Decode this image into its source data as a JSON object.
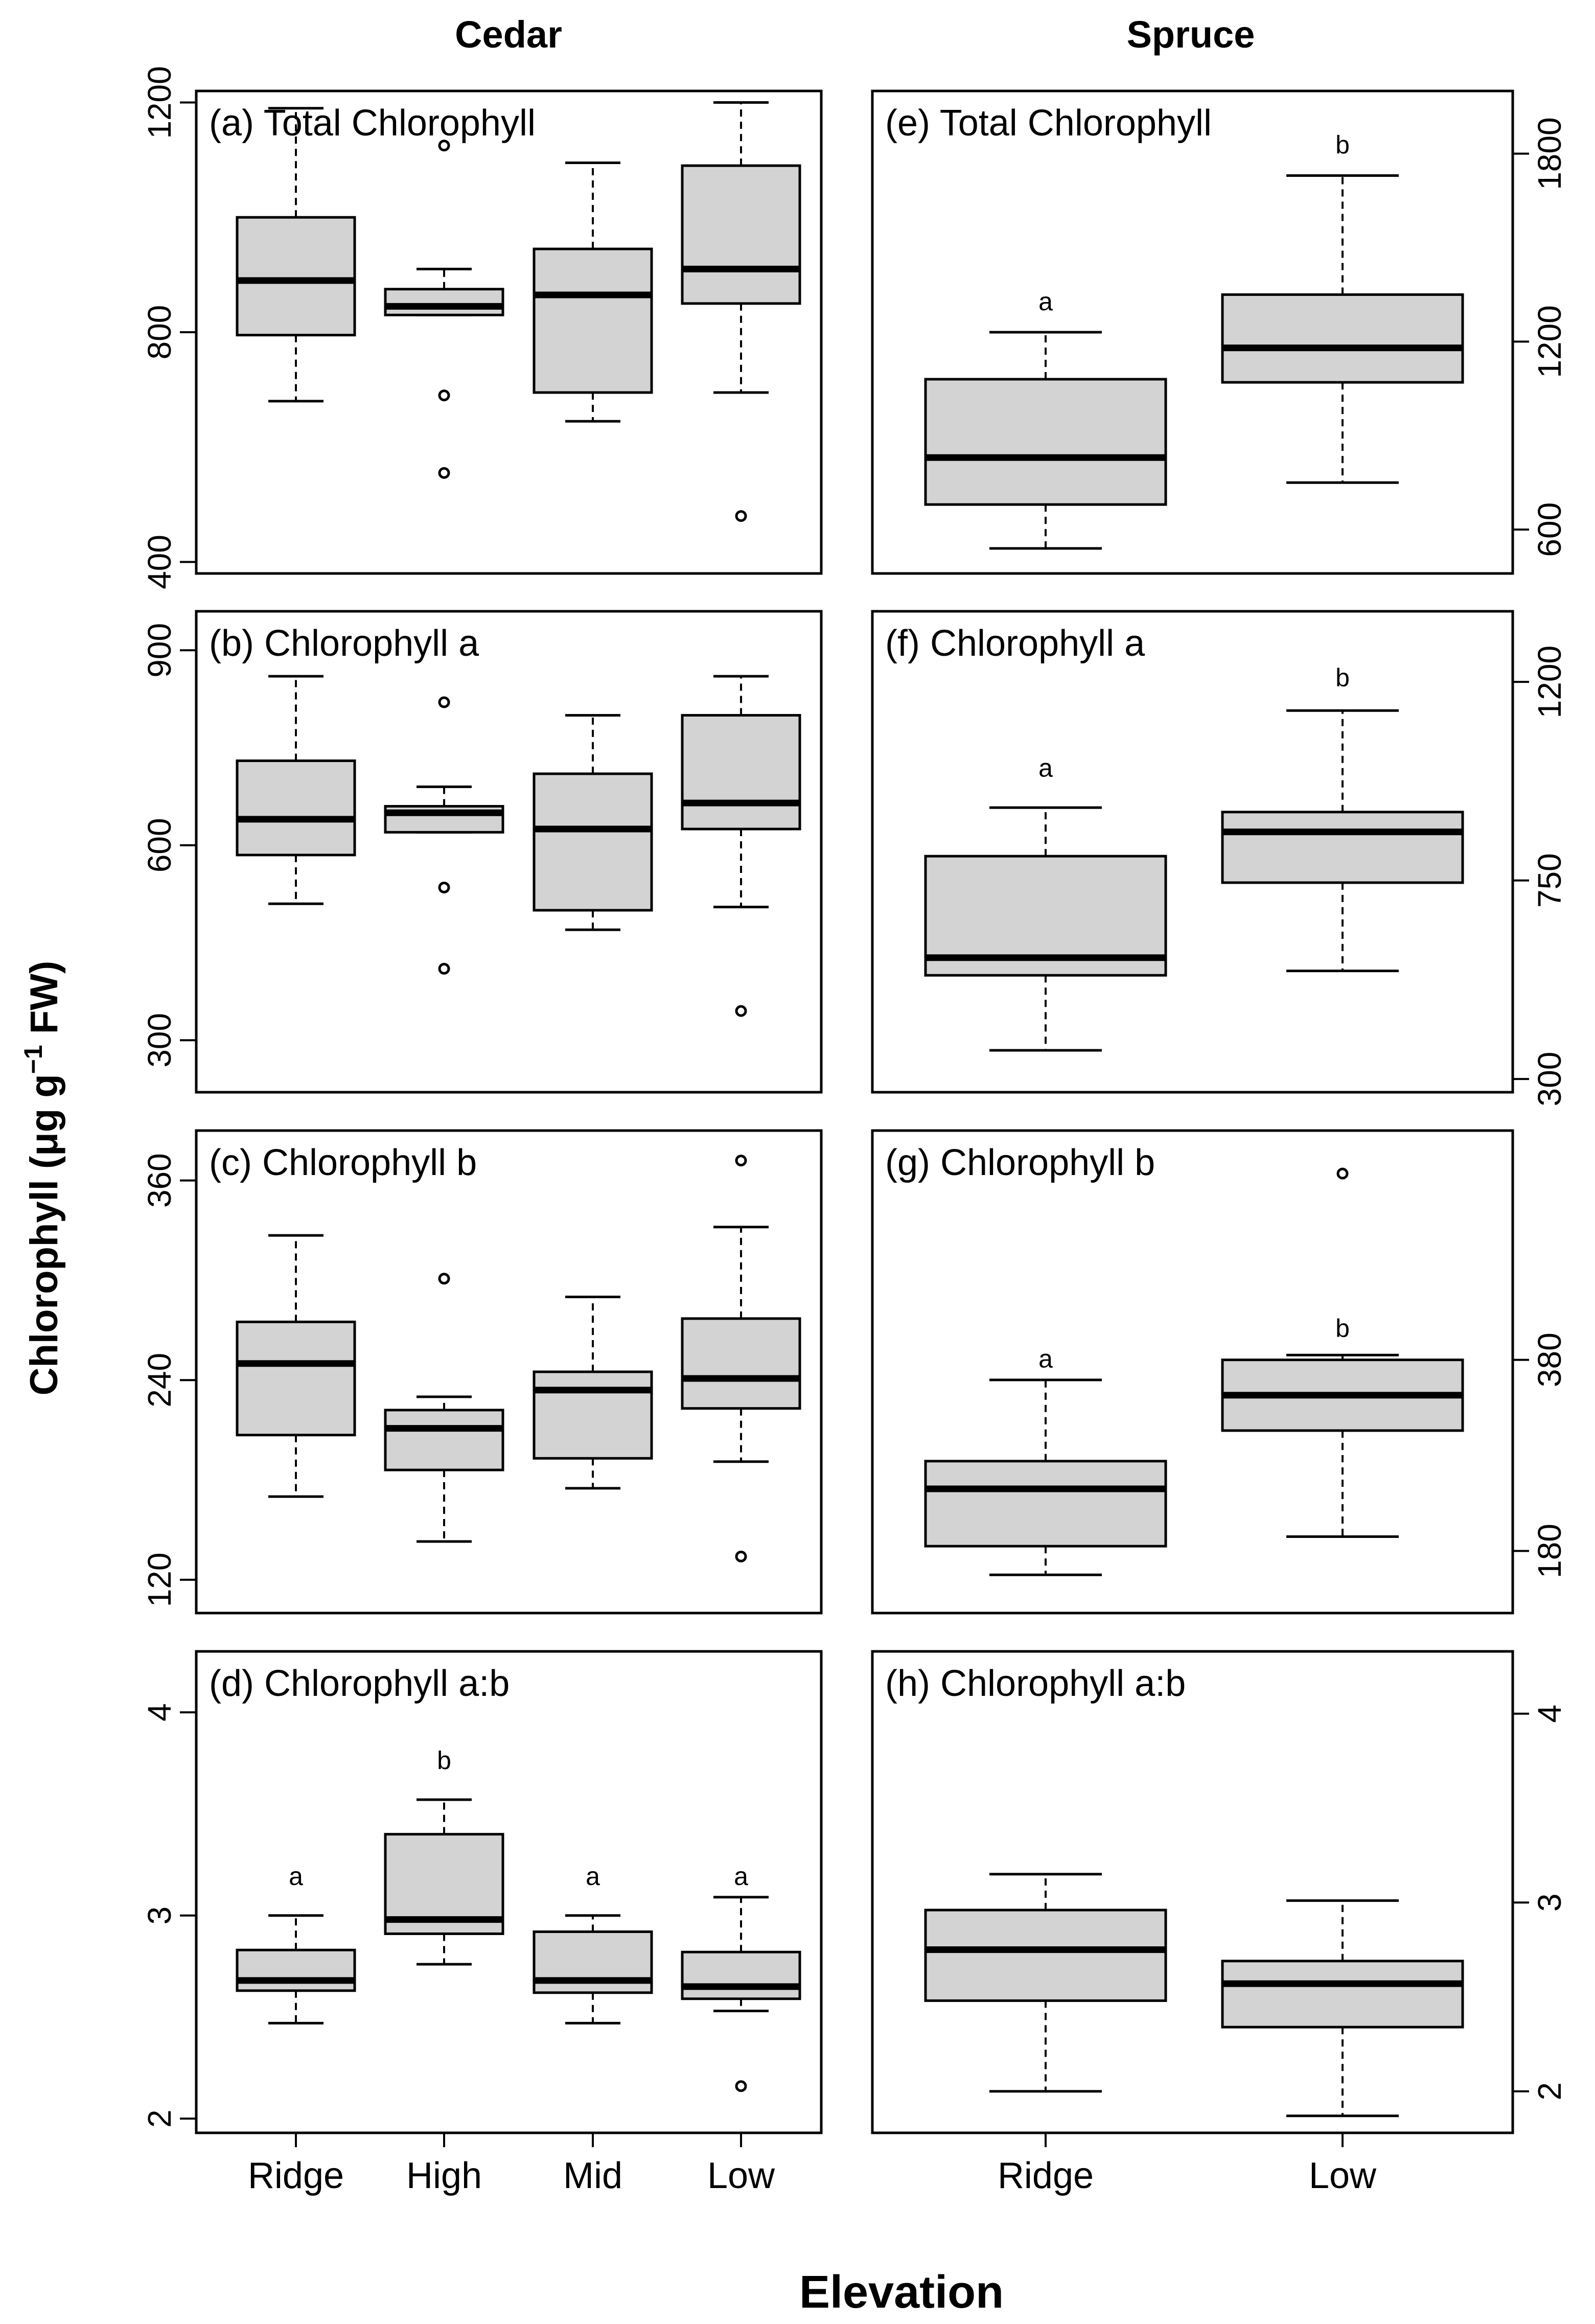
{
  "figure": {
    "column_titles": [
      "Cedar",
      "Spruce"
    ],
    "ylabel_main": "Chlorophyll (μg g",
    "ylabel_sup": "−1",
    "ylabel_tail": " FW)",
    "xlabel": "Elevation"
  },
  "chart_data": [
    {
      "id": "a",
      "type": "boxplot",
      "species": "Cedar",
      "title": "(a) Total Chlorophyll",
      "categories": [
        "Ridge",
        "High",
        "Mid",
        "Low"
      ],
      "ylim": [
        380,
        1220
      ],
      "yticks": [
        "400",
        "800",
        "1200"
      ],
      "ytick_values": [
        400,
        800,
        1200
      ],
      "yaxis_side": "left",
      "boxes": [
        {
          "category": "Ridge",
          "whisker_low": 680,
          "q1": 795,
          "median": 890,
          "q3": 1000,
          "whisker_high": 1190,
          "outliers": []
        },
        {
          "category": "High",
          "whisker_low": 830,
          "q1": 830,
          "median": 845,
          "q3": 875,
          "whisker_high": 910,
          "outliers": [
            1125,
            690,
            555
          ]
        },
        {
          "category": "Mid",
          "whisker_low": 645,
          "q1": 695,
          "median": 865,
          "q3": 945,
          "whisker_high": 1095,
          "outliers": []
        },
        {
          "category": "Low",
          "whisker_low": 695,
          "q1": 850,
          "median": 910,
          "q3": 1090,
          "whisker_high": 1200,
          "outliers": [
            480
          ]
        }
      ],
      "letters": []
    },
    {
      "id": "b",
      "type": "boxplot",
      "species": "Cedar",
      "title": "(b) Chlorophyll a",
      "categories": [
        "Ridge",
        "High",
        "Mid",
        "Low"
      ],
      "ylim": [
        220,
        960
      ],
      "yticks": [
        "300",
        "600",
        "900"
      ],
      "ytick_values": [
        300,
        600,
        900
      ],
      "yaxis_side": "left",
      "boxes": [
        {
          "category": "Ridge",
          "whisker_low": 510,
          "q1": 585,
          "median": 640,
          "q3": 730,
          "whisker_high": 860,
          "outliers": []
        },
        {
          "category": "High",
          "whisker_low": 620,
          "q1": 620,
          "median": 650,
          "q3": 660,
          "whisker_high": 690,
          "outliers": [
            820,
            535,
            410
          ]
        },
        {
          "category": "Mid",
          "whisker_low": 470,
          "q1": 500,
          "median": 625,
          "q3": 710,
          "whisker_high": 800,
          "outliers": []
        },
        {
          "category": "Low",
          "whisker_low": 505,
          "q1": 625,
          "median": 665,
          "q3": 800,
          "whisker_high": 860,
          "outliers": [
            345
          ]
        }
      ],
      "letters": []
    },
    {
      "id": "c",
      "type": "boxplot",
      "species": "Cedar",
      "title": "(c) Chlorophyll b",
      "categories": [
        "Ridge",
        "High",
        "Mid",
        "Low"
      ],
      "ylim": [
        100,
        390
      ],
      "yticks": [
        "120",
        "240",
        "360"
      ],
      "ytick_values": [
        120,
        240,
        360
      ],
      "yaxis_side": "left",
      "boxes": [
        {
          "category": "Ridge",
          "whisker_low": 170,
          "q1": 207,
          "median": 250,
          "q3": 275,
          "whisker_high": 327,
          "outliers": []
        },
        {
          "category": "High",
          "whisker_low": 143,
          "q1": 186,
          "median": 211,
          "q3": 222,
          "whisker_high": 230,
          "outliers": [
            301
          ]
        },
        {
          "category": "Mid",
          "whisker_low": 175,
          "q1": 193,
          "median": 234,
          "q3": 245,
          "whisker_high": 290,
          "outliers": []
        },
        {
          "category": "Low",
          "whisker_low": 191,
          "q1": 223,
          "median": 241,
          "q3": 277,
          "whisker_high": 332,
          "outliers": [
            372,
            134
          ]
        }
      ],
      "letters": []
    },
    {
      "id": "d",
      "type": "boxplot",
      "species": "Cedar",
      "title": "(d) Chlorophyll a:b",
      "categories": [
        "Ridge",
        "High",
        "Mid",
        "Low"
      ],
      "ylim": [
        1.93,
        4.3
      ],
      "yticks": [
        "2",
        "3",
        "4"
      ],
      "ytick_values": [
        2,
        3,
        4
      ],
      "yaxis_side": "left",
      "boxes": [
        {
          "category": "Ridge",
          "whisker_low": 2.47,
          "q1": 2.63,
          "median": 2.68,
          "q3": 2.83,
          "whisker_high": 3.0,
          "outliers": []
        },
        {
          "category": "High",
          "whisker_low": 2.76,
          "q1": 2.91,
          "median": 2.98,
          "q3": 3.4,
          "whisker_high": 3.57,
          "outliers": []
        },
        {
          "category": "Mid",
          "whisker_low": 2.47,
          "q1": 2.62,
          "median": 2.68,
          "q3": 2.92,
          "whisker_high": 3.0,
          "outliers": []
        },
        {
          "category": "Low",
          "whisker_low": 2.53,
          "q1": 2.59,
          "median": 2.65,
          "q3": 2.82,
          "whisker_high": 3.09,
          "outliers": [
            2.16
          ]
        }
      ],
      "letters": [
        {
          "category": "Ridge",
          "text": "a",
          "y": 3.15
        },
        {
          "category": "High",
          "text": "b",
          "y": 3.72
        },
        {
          "category": "Mid",
          "text": "a",
          "y": 3.15
        },
        {
          "category": "Low",
          "text": "a",
          "y": 3.15
        }
      ]
    },
    {
      "id": "e",
      "type": "boxplot",
      "species": "Spruce",
      "title": "(e) Total Chlorophyll",
      "categories": [
        "Ridge",
        "Low"
      ],
      "ylim": [
        460,
        2000
      ],
      "yticks": [
        "600",
        "1200",
        "1800"
      ],
      "ytick_values": [
        600,
        1200,
        1800
      ],
      "yaxis_side": "right",
      "boxes": [
        {
          "category": "Ridge",
          "whisker_low": 540,
          "q1": 680,
          "median": 830,
          "q3": 1080,
          "whisker_high": 1230,
          "outliers": []
        },
        {
          "category": "Low",
          "whisker_low": 750,
          "q1": 1070,
          "median": 1180,
          "q3": 1350,
          "whisker_high": 1730,
          "outliers": []
        }
      ],
      "letters": [
        {
          "category": "Ridge",
          "text": "a",
          "y": 1300
        },
        {
          "category": "Low",
          "text": "b",
          "y": 1800
        }
      ]
    },
    {
      "id": "f",
      "type": "boxplot",
      "species": "Spruce",
      "title": "(f) Chlorophyll a",
      "categories": [
        "Ridge",
        "Low"
      ],
      "ylim": [
        270,
        1360
      ],
      "yticks": [
        "300",
        "750",
        "1200"
      ],
      "ytick_values": [
        300,
        750,
        1200
      ],
      "yaxis_side": "right",
      "boxes": [
        {
          "category": "Ridge",
          "whisker_low": 365,
          "q1": 535,
          "median": 575,
          "q3": 805,
          "whisker_high": 915,
          "outliers": []
        },
        {
          "category": "Low",
          "whisker_low": 545,
          "q1": 745,
          "median": 860,
          "q3": 905,
          "whisker_high": 1135,
          "outliers": []
        }
      ],
      "letters": [
        {
          "category": "Ridge",
          "text": "a",
          "y": 985
        },
        {
          "category": "Low",
          "text": "b",
          "y": 1190
        }
      ]
    },
    {
      "id": "g",
      "type": "boxplot",
      "species": "Spruce",
      "title": "(g) Chlorophyll b",
      "categories": [
        "Ridge",
        "Low"
      ],
      "ylim": [
        115,
        620
      ],
      "yticks": [
        "180",
        "380"
      ],
      "ytick_values": [
        180,
        380
      ],
      "yaxis_side": "right",
      "boxes": [
        {
          "category": "Ridge",
          "whisker_low": 155,
          "q1": 185,
          "median": 245,
          "q3": 274,
          "whisker_high": 359,
          "outliers": []
        },
        {
          "category": "Low",
          "whisker_low": 195,
          "q1": 306,
          "median": 343,
          "q3": 380,
          "whisker_high": 385,
          "outliers": [
            575
          ]
        }
      ],
      "letters": [
        {
          "category": "Ridge",
          "text": "a",
          "y": 372
        },
        {
          "category": "Low",
          "text": "b",
          "y": 404
        }
      ]
    },
    {
      "id": "h",
      "type": "boxplot",
      "species": "Spruce",
      "title": "(h) Chlorophyll a:b",
      "categories": [
        "Ridge",
        "Low"
      ],
      "ylim": [
        1.78,
        4.33
      ],
      "yticks": [
        "2",
        "3",
        "4"
      ],
      "ytick_values": [
        2,
        3,
        4
      ],
      "yaxis_side": "right",
      "boxes": [
        {
          "category": "Ridge",
          "whisker_low": 2.0,
          "q1": 2.48,
          "median": 2.75,
          "q3": 2.96,
          "whisker_high": 3.15,
          "outliers": []
        },
        {
          "category": "Low",
          "whisker_low": 1.87,
          "q1": 2.34,
          "median": 2.57,
          "q3": 2.69,
          "whisker_high": 3.01,
          "outliers": []
        }
      ],
      "letters": []
    }
  ]
}
